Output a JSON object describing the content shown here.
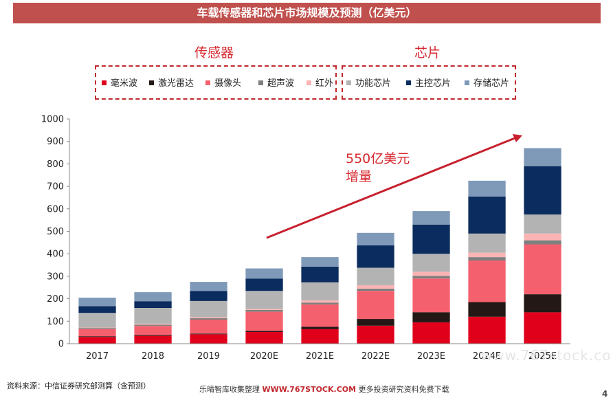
{
  "banner": {
    "title": "车载传感器和芯片市场规模及预测（亿美元）"
  },
  "groups": {
    "sensor_label": "传感器",
    "chip_label": "芯片"
  },
  "annotation": {
    "line1": "550亿美元",
    "line2": "增量"
  },
  "footer": {
    "source": "资料来源：中信证券研究部测算（含预测）",
    "note_prefix": "乐晴智库收集整理",
    "note_site": "WWW.767STOCK.COM",
    "note_suffix": "更多投资研究资料免费下载",
    "page": "4"
  },
  "watermark": "www.767stock.co",
  "chart_data": {
    "type": "bar",
    "stacked": true,
    "categories": [
      "2017",
      "2018",
      "2019",
      "2020E",
      "2021E",
      "2022E",
      "2023E",
      "2024E",
      "2025E"
    ],
    "ylim": [
      0,
      1000
    ],
    "yticks": [
      0,
      100,
      200,
      300,
      400,
      500,
      600,
      700,
      800,
      900,
      1000
    ],
    "grid": false,
    "series": [
      {
        "name": "毫米波",
        "color": "#e0001b",
        "values": [
          30,
          35,
          42,
          52,
          65,
          80,
          95,
          120,
          140
        ]
      },
      {
        "name": "激光雷达",
        "color": "#231815",
        "values": [
          3,
          4,
          3,
          5,
          10,
          30,
          45,
          65,
          80
        ]
      },
      {
        "name": "摄像头",
        "color": "#f4606e",
        "values": [
          32,
          40,
          62,
          85,
          100,
          125,
          150,
          185,
          222
        ]
      },
      {
        "name": "超声波",
        "color": "#7f7f7f",
        "values": [
          5,
          5,
          6,
          8,
          8,
          10,
          12,
          15,
          18
        ]
      },
      {
        "name": "红外",
        "color": "#fbb4b4",
        "values": [
          2,
          5,
          5,
          5,
          10,
          15,
          18,
          20,
          30
        ]
      },
      {
        "name": "功能芯片",
        "color": "#b3b3b3",
        "values": [
          65,
          70,
          72,
          80,
          80,
          78,
          80,
          85,
          85
        ]
      },
      {
        "name": "主控芯片",
        "color": "#0b2c5e",
        "values": [
          30,
          30,
          45,
          55,
          70,
          100,
          130,
          165,
          215
        ]
      },
      {
        "name": "存储芯片",
        "color": "#7f99b8",
        "values": [
          38,
          40,
          40,
          45,
          42,
          55,
          60,
          70,
          80
        ]
      }
    ]
  }
}
